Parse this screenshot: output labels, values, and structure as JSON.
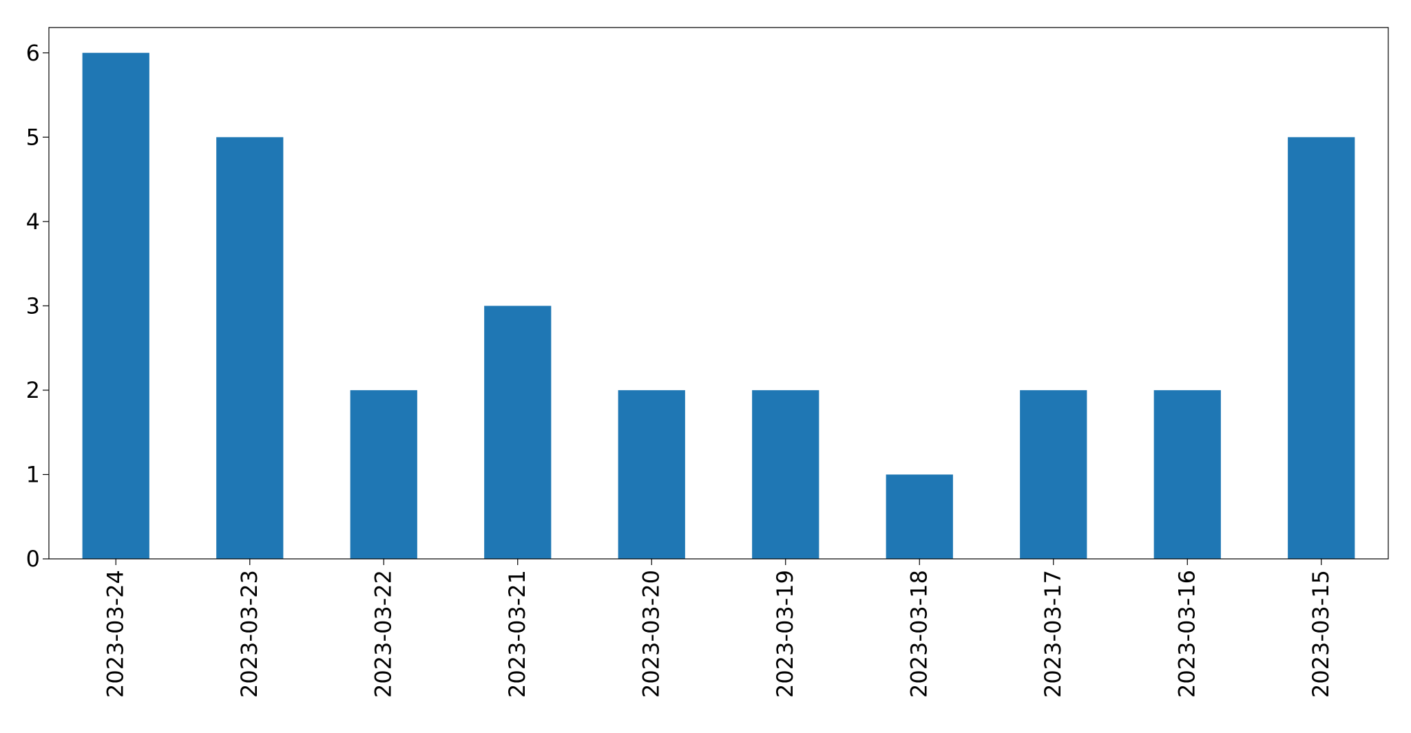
{
  "chart_data": {
    "type": "bar",
    "title": "",
    "xlabel": "",
    "ylabel": "",
    "categories": [
      "2023-03-24",
      "2023-03-23",
      "2023-03-22",
      "2023-03-21",
      "2023-03-20",
      "2023-03-19",
      "2023-03-18",
      "2023-03-17",
      "2023-03-16",
      "2023-03-15"
    ],
    "values": [
      6,
      5,
      2,
      3,
      2,
      2,
      1,
      2,
      2,
      5
    ],
    "ylim": [
      0,
      6.3
    ],
    "yticks": [
      0,
      1,
      2,
      3,
      4,
      5,
      6
    ],
    "grid": false,
    "legend": "none",
    "bar_color": "#1f77b4"
  }
}
